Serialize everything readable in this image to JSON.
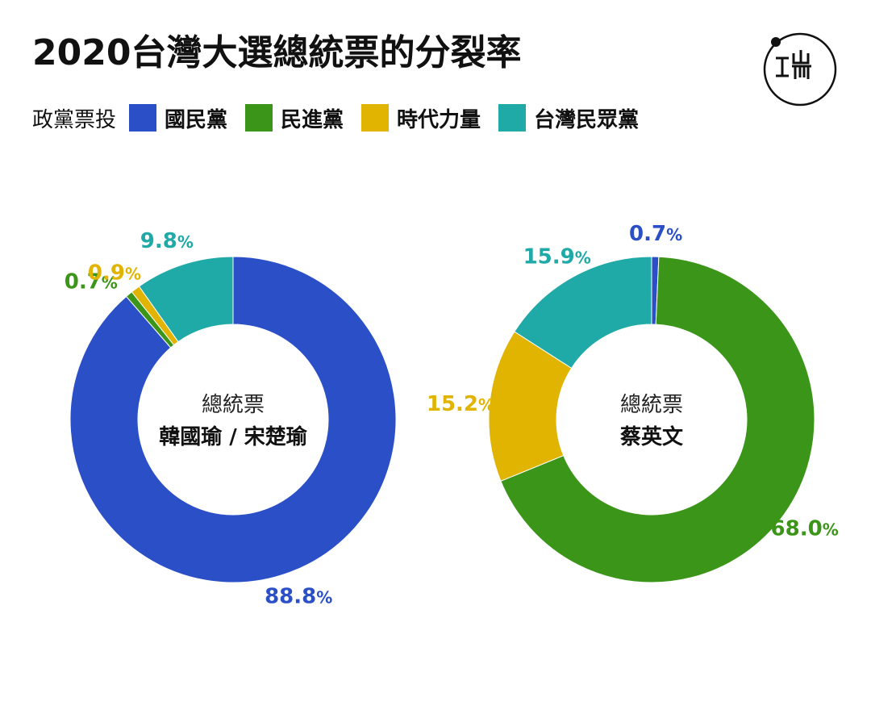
{
  "title": "2020台灣大選總統票的分裂率",
  "legend": {
    "label": "政黨票投",
    "items": [
      {
        "name": "國民黨",
        "color": "#2a4fc6"
      },
      {
        "name": "民進黨",
        "color": "#3a9518"
      },
      {
        "name": "時代力量",
        "color": "#e0b400"
      },
      {
        "name": "台灣民眾黨",
        "color": "#1fa9a7"
      }
    ]
  },
  "chart_data": [
    {
      "type": "pie",
      "variant": "donut",
      "center_line1": "總統票",
      "center_line2": "韓國瑜 / 宋楚瑜",
      "categories": [
        "國民黨",
        "民進黨",
        "時代力量",
        "台灣民眾黨"
      ],
      "values": [
        88.8,
        0.7,
        0.9,
        9.8
      ],
      "labels": [
        "88.8",
        "0.7",
        "0.9",
        "9.8"
      ],
      "unit": "%"
    },
    {
      "type": "pie",
      "variant": "donut",
      "center_line1": "總統票",
      "center_line2": "蔡英文",
      "categories": [
        "國民黨",
        "民進黨",
        "時代力量",
        "台灣民眾黨"
      ],
      "values": [
        0.7,
        68.0,
        15.2,
        15.9
      ],
      "labels": [
        "0.7",
        "68.0",
        "15.2",
        "15.9"
      ],
      "unit": "%"
    }
  ]
}
